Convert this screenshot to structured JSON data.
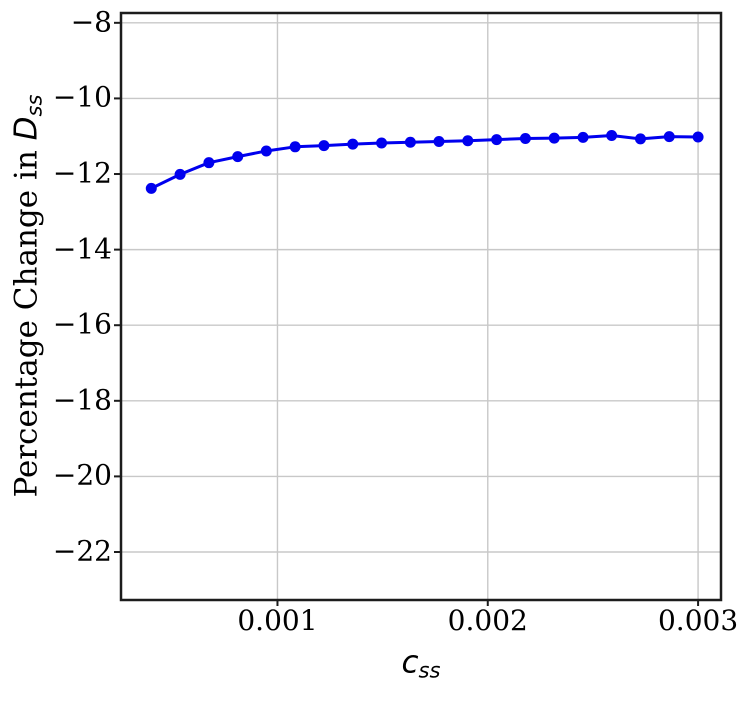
{
  "figure": {
    "ylabel": {
      "text": "Percentage Change in ",
      "math": "D",
      "sub": "ss"
    },
    "xlabel": {
      "math": "c",
      "sub": "ss"
    }
  },
  "chart_data": {
    "type": "line",
    "title": "",
    "xlabel": "c_ss",
    "ylabel": "Percentage Change in D_ss",
    "grid": true,
    "grid_color": "#c8c8c8",
    "spine_color": "#1c1c1c",
    "background": "#ffffff",
    "legend": null,
    "xlim": [
      0.000256,
      0.003109
    ],
    "ylim": [
      -23.27,
      -7.74
    ],
    "x_ticks": [
      0.001,
      0.002,
      0.003
    ],
    "x_tick_labels": [
      "0.001",
      "0.002",
      "0.003"
    ],
    "y_ticks": [
      -8,
      -10,
      -12,
      -14,
      -16,
      -18,
      -20,
      -22
    ],
    "y_tick_labels": [
      "−8",
      "−10",
      "−12",
      "−14",
      "−16",
      "−18",
      "−20",
      "−22"
    ],
    "series": [
      {
        "name": "percentage-change-in-Dss",
        "color": "#0000ee",
        "marker": "circle",
        "marker_size": 5.5,
        "line_width": 3,
        "x": [
          0.0004,
          0.000537,
          0.000674,
          0.000811,
          0.000947,
          0.001084,
          0.001221,
          0.001358,
          0.001495,
          0.001632,
          0.001768,
          0.001905,
          0.002042,
          0.002179,
          0.002316,
          0.002453,
          0.002589,
          0.002726,
          0.002863,
          0.003
        ],
        "y": [
          -12.38,
          -12.01,
          -11.7,
          -11.54,
          -11.39,
          -11.28,
          -11.25,
          -11.21,
          -11.18,
          -11.16,
          -11.14,
          -11.12,
          -11.09,
          -11.06,
          -11.05,
          -11.03,
          -10.98,
          -11.07,
          -11.01,
          -11.02
        ]
      }
    ]
  }
}
